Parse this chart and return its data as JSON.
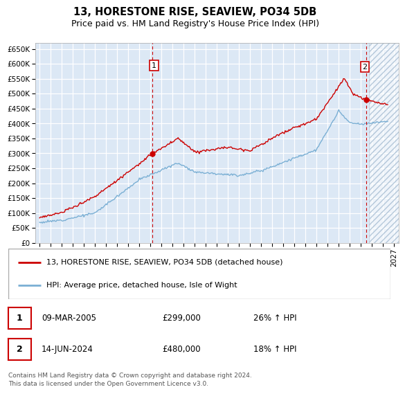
{
  "title": "13, HORESTONE RISE, SEAVIEW, PO34 5DB",
  "subtitle": "Price paid vs. HM Land Registry's House Price Index (HPI)",
  "ylabel_ticks": [
    "£0",
    "£50K",
    "£100K",
    "£150K",
    "£200K",
    "£250K",
    "£300K",
    "£350K",
    "£400K",
    "£450K",
    "£500K",
    "£550K",
    "£600K",
    "£650K"
  ],
  "ytick_values": [
    0,
    50000,
    100000,
    150000,
    200000,
    250000,
    300000,
    350000,
    400000,
    450000,
    500000,
    550000,
    600000,
    650000
  ],
  "ylim": [
    0,
    670000
  ],
  "xlim_start": 1994.6,
  "xlim_end": 2027.4,
  "background_color": "#dce8f5",
  "grid_color": "#ffffff",
  "sale1_year": 2005.19,
  "sale1_price": 299000,
  "sale2_year": 2024.45,
  "sale2_price": 480000,
  "legend_line1": "13, HORESTONE RISE, SEAVIEW, PO34 5DB (detached house)",
  "legend_line2": "HPI: Average price, detached house, Isle of Wight",
  "annotation1_label": "1",
  "annotation1_date": "09-MAR-2005",
  "annotation1_price": "£299,000",
  "annotation1_hpi": "26% ↑ HPI",
  "annotation2_label": "2",
  "annotation2_date": "14-JUN-2024",
  "annotation2_price": "£480,000",
  "annotation2_hpi": "18% ↑ HPI",
  "footer": "Contains HM Land Registry data © Crown copyright and database right 2024.\nThis data is licensed under the Open Government Licence v3.0.",
  "red_color": "#cc0000",
  "blue_color": "#7aafd4",
  "hatch_color": "#b0c4d8",
  "title_fontsize": 10.5,
  "subtitle_fontsize": 9,
  "tick_fontsize": 7.5,
  "legend_fontsize": 8,
  "annot_fontsize": 8.5
}
